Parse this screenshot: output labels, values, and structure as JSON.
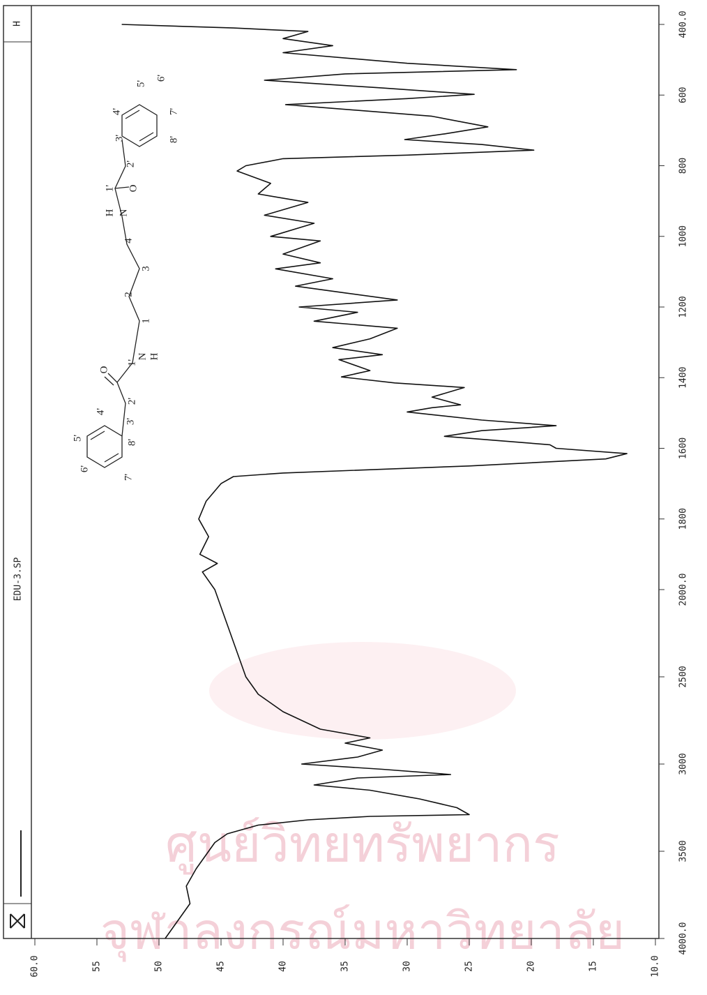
{
  "chart_data": {
    "type": "line",
    "title": "EDU-3.SP",
    "marker_label": "H",
    "x": [
      4000,
      3900,
      3800,
      3700,
      3600,
      3500,
      3450,
      3400,
      3350,
      3320,
      3300,
      3290,
      3250,
      3200,
      3150,
      3120,
      3080,
      3060,
      3030,
      3000,
      2960,
      2920,
      2880,
      2850,
      2800,
      2700,
      2600,
      2500,
      2400,
      2300,
      2200,
      2100,
      2000,
      1950,
      1926,
      1900,
      1850,
      1800,
      1750,
      1700,
      1680,
      1670,
      1650,
      1630,
      1615,
      1600,
      1590,
      1566,
      1550,
      1536,
      1520,
      1497,
      1485,
      1477,
      1455,
      1428,
      1415,
      1398,
      1380,
      1349,
      1335,
      1315,
      1290,
      1260,
      1240,
      1215,
      1200,
      1180,
      1160,
      1141,
      1120,
      1092,
      1075,
      1050,
      1013,
      1000,
      963,
      940,
      904,
      880,
      850,
      815,
      800,
      780,
      770,
      756,
      740,
      726,
      710,
      690,
      660,
      627,
      610,
      598,
      580,
      558,
      540,
      528,
      510,
      480,
      460,
      440,
      420,
      410,
      400
    ],
    "series": [
      {
        "color": "#111111",
        "values": [
          49.5,
          48.5,
          47.5,
          47.8,
          47,
          46,
          45.5,
          44.5,
          42,
          38,
          33,
          25,
          26,
          29,
          33,
          37.5,
          34,
          26.5,
          32,
          38.5,
          34,
          32,
          35,
          33,
          37,
          40,
          42,
          43,
          43.5,
          44,
          44.5,
          45,
          45.5,
          46.5,
          45.3,
          46.7,
          46,
          46.8,
          46.2,
          45,
          44,
          40,
          25,
          14,
          12.3,
          18,
          18.5,
          27,
          24,
          18,
          24,
          30,
          28,
          25.7,
          28,
          25.4,
          31,
          35.3,
          33,
          35.5,
          32,
          36,
          33,
          30.8,
          37.5,
          34,
          38.7,
          30.8,
          35,
          39,
          36,
          40.6,
          37,
          40,
          37,
          41,
          37.5,
          41.5,
          38,
          42,
          41,
          43.7,
          43,
          40,
          30,
          19.8,
          24,
          30.2,
          27,
          23.5,
          28,
          39.8,
          30,
          24.6,
          32,
          41.5,
          35,
          21.2,
          30,
          40,
          36,
          40,
          38,
          44,
          53
        ]
      }
    ],
    "xlim": [
      4000,
      400
    ],
    "xscale_break": 2000,
    "xticks": [
      {
        "value": 400,
        "label": "400.0"
      },
      600,
      800,
      1000,
      1200,
      1400,
      1600,
      1800,
      {
        "value": 2000,
        "label": "2000.0"
      },
      2500,
      3000,
      3500,
      {
        "value": 4000,
        "label": "4000.0"
      }
    ],
    "ylim": [
      10,
      60
    ],
    "yticks": [
      {
        "value": 60,
        "label": "60.0"
      },
      55,
      50,
      45,
      40,
      35,
      30,
      25,
      20,
      15,
      {
        "value": 10,
        "label": "10.0"
      }
    ],
    "structure_labels": [
      "4'",
      "5'",
      "6'",
      "7'",
      "8'",
      "3'",
      "2'",
      "1'",
      "O",
      "N",
      "H",
      "1",
      "2",
      "3",
      "4",
      "N",
      "H",
      "1'",
      "O",
      "2'",
      "3'",
      "4'",
      "5'",
      "6'",
      "7'",
      "8'"
    ],
    "watermark": [
      "ศูนย์วิทยทรัพยากร",
      "จุฬาลงกรณ์มหาวิทยาลัย"
    ]
  }
}
